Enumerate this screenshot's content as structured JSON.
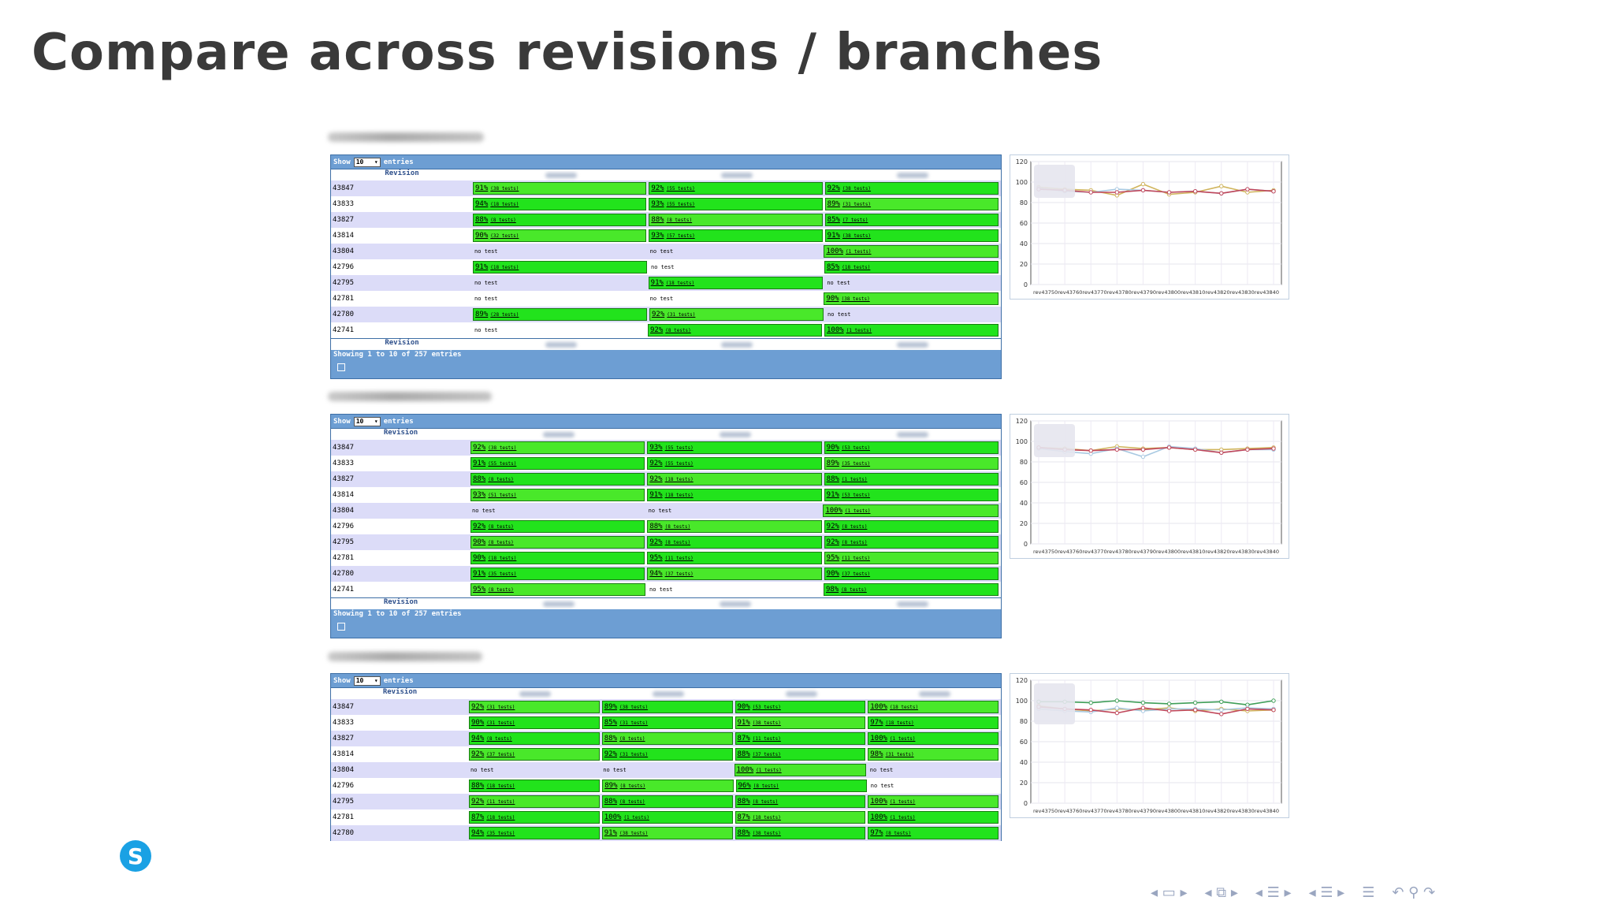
{
  "slide": {
    "title": "Compare across revisions / branches"
  },
  "tables": [
    {
      "show_label": "Show",
      "show_value": "10",
      "entries_label": "entries",
      "revision_header": "Revision",
      "footer": "Showing 1 to 10 of 257 entries",
      "rows": [
        {
          "rev": "43847",
          "cells": [
            "91% (38 tests)",
            "92% (55 tests)",
            "92% (38 tests)"
          ]
        },
        {
          "rev": "43833",
          "cells": [
            "94% (18 tests)",
            "93% (55 tests)",
            "89% (31 tests)"
          ]
        },
        {
          "rev": "43827",
          "cells": [
            "88% (8 tests)",
            "88% (8 tests)",
            "85% (7 tests)"
          ]
        },
        {
          "rev": "43814",
          "cells": [
            "90% (32 tests)",
            "93% (57 tests)",
            "91% (38 tests)"
          ]
        },
        {
          "rev": "43804",
          "cells": [
            "no test",
            "no test",
            "100% (1 tests)"
          ]
        },
        {
          "rev": "42796",
          "cells": [
            "91% (18 tests)",
            "no test",
            "85% (18 tests)"
          ]
        },
        {
          "rev": "42795",
          "cells": [
            "no test",
            "91% (18 tests)",
            "no test"
          ]
        },
        {
          "rev": "42781",
          "cells": [
            "no test",
            "no test",
            "90% (38 tests)"
          ]
        },
        {
          "rev": "42780",
          "cells": [
            "89% (28 tests)",
            "92% (31 tests)",
            "no test"
          ]
        },
        {
          "rev": "42741",
          "cells": [
            "no test",
            "92% (8 tests)",
            "100% (1 tests)"
          ]
        }
      ]
    },
    {
      "show_label": "Show",
      "show_value": "10",
      "entries_label": "entries",
      "revision_header": "Revision",
      "footer": "Showing 1 to 10 of 257 entries",
      "rows": [
        {
          "rev": "43847",
          "cells": [
            "92% (38 tests)",
            "93% (55 tests)",
            "90% (53 tests)"
          ]
        },
        {
          "rev": "43833",
          "cells": [
            "91% (55 tests)",
            "92% (55 tests)",
            "89% (35 tests)"
          ]
        },
        {
          "rev": "43827",
          "cells": [
            "88% (8 tests)",
            "92% (18 tests)",
            "88% (1 tests)"
          ]
        },
        {
          "rev": "43814",
          "cells": [
            "93% (51 tests)",
            "91% (18 tests)",
            "91% (53 tests)"
          ]
        },
        {
          "rev": "43804",
          "cells": [
            "no test",
            "no test",
            "100% (1 tests)"
          ]
        },
        {
          "rev": "42796",
          "cells": [
            "92% (8 tests)",
            "88% (8 tests)",
            "92% (8 tests)"
          ]
        },
        {
          "rev": "42795",
          "cells": [
            "90% (8 tests)",
            "92% (8 tests)",
            "92% (8 tests)"
          ]
        },
        {
          "rev": "42781",
          "cells": [
            "90% (18 tests)",
            "95% (11 tests)",
            "95% (11 tests)"
          ]
        },
        {
          "rev": "42780",
          "cells": [
            "91% (35 tests)",
            "94% (37 tests)",
            "90% (37 tests)"
          ]
        },
        {
          "rev": "42741",
          "cells": [
            "95% (8 tests)",
            "no test",
            "98% (8 tests)"
          ]
        }
      ]
    },
    {
      "show_label": "Show",
      "show_value": "10",
      "entries_label": "entries",
      "revision_header": "Revision",
      "footer": "",
      "rows": [
        {
          "rev": "43847",
          "cells": [
            "92% (31 tests)",
            "89% (38 tests)",
            "90% (53 tests)",
            "100% (18 tests)"
          ]
        },
        {
          "rev": "43833",
          "cells": [
            "90% (31 tests)",
            "85% (31 tests)",
            "91% (38 tests)",
            "97% (18 tests)"
          ]
        },
        {
          "rev": "43827",
          "cells": [
            "94% (8 tests)",
            "88% (8 tests)",
            "87% (11 tests)",
            "100% (1 tests)"
          ]
        },
        {
          "rev": "43814",
          "cells": [
            "92% (37 tests)",
            "92% (31 tests)",
            "88% (37 tests)",
            "98% (31 tests)"
          ]
        },
        {
          "rev": "43804",
          "cells": [
            "no test",
            "no test",
            "100% (1 tests)",
            "no test"
          ]
        },
        {
          "rev": "42796",
          "cells": [
            "88% (18 tests)",
            "89% (8 tests)",
            "96% (8 tests)",
            "no test"
          ]
        },
        {
          "rev": "42795",
          "cells": [
            "92% (11 tests)",
            "88% (8 tests)",
            "88% (8 tests)",
            "100% (1 tests)"
          ]
        },
        {
          "rev": "42781",
          "cells": [
            "87% (18 tests)",
            "100% (1 tests)",
            "87% (18 tests)",
            "100% (1 tests)"
          ]
        },
        {
          "rev": "42780",
          "cells": [
            "94% (35 tests)",
            "91% (38 tests)",
            "88% (38 tests)",
            "97% (8 tests)"
          ]
        }
      ]
    }
  ],
  "chart_data": [
    {
      "type": "line",
      "yticks": [
        "120",
        "100",
        "80",
        "60",
        "40",
        "20",
        "0"
      ],
      "ylim": [
        0,
        120
      ],
      "x": [
        "rev43750",
        "rev43760",
        "rev43770",
        "rev43780",
        "rev43790",
        "rev43800",
        "rev43810",
        "rev43820",
        "rev43830",
        "rev43840"
      ],
      "xlabel_text": "rev43750rev43760rev43770rev43780rev43790rev43800rev43810rev43820rev43830rev43840",
      "series": [
        {
          "color": "#d0b45c",
          "values": [
            95,
            93,
            92,
            87,
            98,
            88,
            90,
            96,
            90,
            92
          ]
        },
        {
          "color": "#a9c9e2",
          "values": [
            94,
            91,
            90,
            93,
            92,
            90,
            91,
            89,
            93,
            91
          ]
        },
        {
          "color": "#c0465a",
          "values": [
            93,
            92,
            90,
            90,
            92,
            90,
            91,
            89,
            93,
            91
          ]
        }
      ]
    },
    {
      "type": "line",
      "yticks": [
        "120",
        "100",
        "80",
        "60",
        "40",
        "20",
        "0"
      ],
      "ylim": [
        0,
        120
      ],
      "x": [
        "rev43750",
        "rev43760",
        "rev43770",
        "rev43780",
        "rev43790",
        "rev43800",
        "rev43810",
        "rev43820",
        "rev43830",
        "rev43840"
      ],
      "xlabel_text": "rev43750rev43760rev43770rev43780rev43790rev43800rev43810rev43820rev43830rev43840",
      "series": [
        {
          "color": "#d0b45c",
          "values": [
            94,
            93,
            91,
            95,
            93,
            94,
            92,
            92,
            93,
            94
          ]
        },
        {
          "color": "#a9c9e2",
          "values": [
            93,
            90,
            88,
            93,
            85,
            95,
            93,
            89,
            92,
            92
          ]
        },
        {
          "color": "#c0465a",
          "values": [
            94,
            92,
            91,
            92,
            92,
            94,
            92,
            89,
            92,
            93
          ]
        }
      ]
    },
    {
      "type": "line",
      "yticks": [
        "120",
        "100",
        "80",
        "60",
        "40",
        "20",
        "0"
      ],
      "ylim": [
        0,
        120
      ],
      "x": [
        "rev43750",
        "rev43760",
        "rev43770",
        "rev43780",
        "rev43790",
        "rev43800",
        "rev43810",
        "rev43820",
        "rev43830",
        "rev43840"
      ],
      "xlabel_text": "rev43750rev43760rev43770rev43780rev43790rev43800rev43810rev43820rev43830rev43840",
      "series": [
        {
          "color": "#3f9e58",
          "values": [
            99,
            99,
            98,
            100,
            98,
            97,
            98,
            99,
            96,
            100
          ]
        },
        {
          "color": "#d0b45c",
          "values": [
            95,
            92,
            90,
            92,
            91,
            93,
            90,
            92,
            90,
            91
          ]
        },
        {
          "color": "#a9c9e2",
          "values": [
            92,
            90,
            89,
            93,
            90,
            92,
            92,
            91,
            93,
            92
          ]
        },
        {
          "color": "#c0465a",
          "values": [
            94,
            92,
            91,
            88,
            93,
            90,
            91,
            87,
            92,
            91
          ]
        }
      ]
    }
  ],
  "nav": {
    "icons": [
      "nav-prev-icon",
      "nav-frame-icon",
      "nav-next-icon",
      "nav-subsection-icon",
      "nav-section-icon",
      "nav-toc-icon",
      "nav-search-icon"
    ]
  }
}
